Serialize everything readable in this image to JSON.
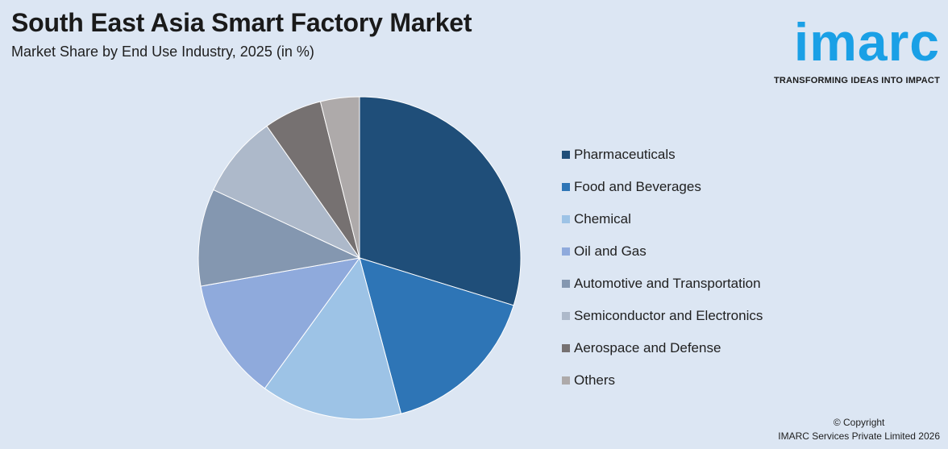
{
  "header": {
    "title": "South East Asia Smart Factory Market",
    "subtitle": "Market Share by End Use Industry, 2025 (in %)"
  },
  "logo": {
    "word": "imarc",
    "tagline": "TRANSFORMING IDEAS INTO IMPACT",
    "color": "#1aa0e6"
  },
  "chart_data": {
    "type": "pie",
    "title": "South East Asia Smart Factory Market",
    "subtitle": "Market Share by End Use Industry, 2025 (in %)",
    "legend_position": "right",
    "categories": [
      "Pharmaceuticals",
      "Food and Beverages",
      "Chemical",
      "Oil and Gas",
      "Automotive and Transportation",
      "Semiconductor and Electronics",
      "Aerospace and Defense",
      "Others"
    ],
    "values": [
      30.5,
      16.5,
      14.5,
      12.5,
      10.0,
      8.5,
      6.0,
      4.0
    ],
    "colors": [
      "#1f4e79",
      "#2e75b6",
      "#9dc3e6",
      "#8faadc",
      "#8497b0",
      "#adb9ca",
      "#767171",
      "#aeaaaa"
    ]
  },
  "footer": {
    "copyright_line1": "© Copyright",
    "copyright_line2": "IMARC Services Private Limited 2026"
  }
}
